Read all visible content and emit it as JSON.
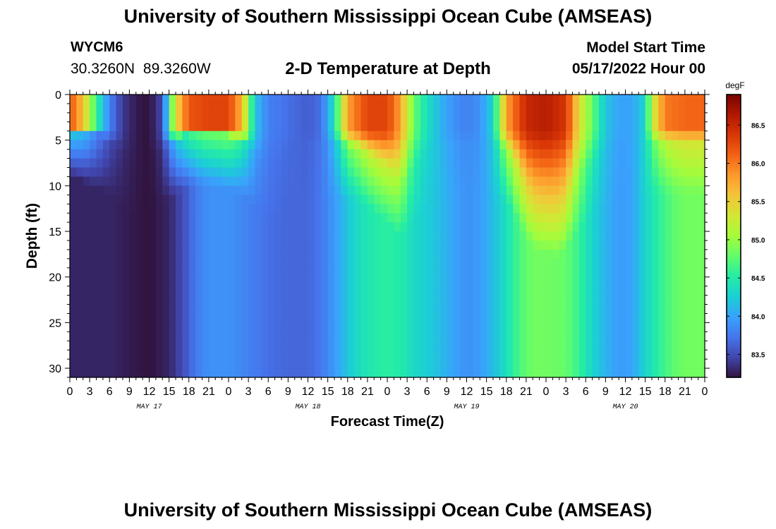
{
  "page": {
    "title": "University of Southern Mississippi Ocean Cube (AMSEAS)",
    "station_id": "WYCM6",
    "station_coords": "30.3260N 89.3260W",
    "subtitle": "2-D Temperature at Depth",
    "model_start_label": "Model Start Time",
    "model_start_value": "05/17/2022 Hour 00",
    "footer_title": "University of Southern Mississippi Ocean Cube (AMSEAS)"
  },
  "chart_data": {
    "type": "heatmap",
    "title": "2-D Temperature at Depth",
    "xlabel": "Forecast Time(Z)",
    "ylabel": "Depth (ft)",
    "x_unit": "hours since 05/17/2022 00Z",
    "x_range": [
      0,
      96
    ],
    "x_tick_step_hours": 3,
    "x_tick_labels": [
      "0",
      "3",
      "6",
      "9",
      "12",
      "15",
      "18",
      "21",
      "0",
      "3",
      "6",
      "9",
      "12",
      "15",
      "18",
      "21",
      "0",
      "3",
      "6",
      "9",
      "12",
      "15",
      "18",
      "21",
      "0",
      "3",
      "6",
      "9",
      "12",
      "15",
      "18",
      "21",
      "0"
    ],
    "day_labels": [
      {
        "label": "MAY 17",
        "hour": 12
      },
      {
        "label": "MAY 18",
        "hour": 36
      },
      {
        "label": "MAY 19",
        "hour": 60
      },
      {
        "label": "MAY 20",
        "hour": 84
      }
    ],
    "y_range": [
      0,
      31
    ],
    "y_ticks": [
      0,
      5,
      10,
      15,
      20,
      25,
      30
    ],
    "colorbar": {
      "unit": "degF",
      "range": [
        83.2,
        86.9
      ],
      "ticks": [
        83.5,
        84.0,
        84.5,
        85.0,
        85.5,
        86.0,
        86.5
      ],
      "colormap": [
        "#30123b",
        "#4145ab",
        "#4675ed",
        "#39a2fc",
        "#1bcfd4",
        "#24eca6",
        "#61fc6c",
        "#a4fc3b",
        "#d1e834",
        "#f3c63a",
        "#fe9b2d",
        "#f36315",
        "#d93806",
        "#b11901",
        "#7a0402"
      ]
    },
    "surface_layer_depth_ft": [
      0,
      4
    ],
    "surface_series_degF": [
      {
        "hour": 0,
        "value": 86.2
      },
      {
        "hour": 2,
        "value": 85.6
      },
      {
        "hour": 4,
        "value": 84.6
      },
      {
        "hour": 6,
        "value": 83.8
      },
      {
        "hour": 8,
        "value": 83.4
      },
      {
        "hour": 10,
        "value": 83.25
      },
      {
        "hour": 12,
        "value": 83.2
      },
      {
        "hour": 14,
        "value": 83.5
      },
      {
        "hour": 15,
        "value": 84.5
      },
      {
        "hour": 16,
        "value": 85.4
      },
      {
        "hour": 18,
        "value": 86.2
      },
      {
        "hour": 21,
        "value": 86.3
      },
      {
        "hour": 24,
        "value": 86.3
      },
      {
        "hour": 26,
        "value": 85.7
      },
      {
        "hour": 28,
        "value": 84.2
      },
      {
        "hour": 30,
        "value": 83.8
      },
      {
        "hour": 33,
        "value": 83.7
      },
      {
        "hour": 36,
        "value": 83.6
      },
      {
        "hour": 38,
        "value": 83.7
      },
      {
        "hour": 40,
        "value": 84.4
      },
      {
        "hour": 42,
        "value": 85.8
      },
      {
        "hour": 45,
        "value": 86.3
      },
      {
        "hour": 48,
        "value": 86.3
      },
      {
        "hour": 50,
        "value": 85.8
      },
      {
        "hour": 52,
        "value": 84.8
      },
      {
        "hour": 54,
        "value": 84.4
      },
      {
        "hour": 56,
        "value": 84.1
      },
      {
        "hour": 58,
        "value": 83.9
      },
      {
        "hour": 60,
        "value": 83.8
      },
      {
        "hour": 62,
        "value": 83.9
      },
      {
        "hour": 64,
        "value": 84.3
      },
      {
        "hour": 66,
        "value": 85.8
      },
      {
        "hour": 69,
        "value": 86.5
      },
      {
        "hour": 72,
        "value": 86.6
      },
      {
        "hour": 75,
        "value": 86.4
      },
      {
        "hour": 77,
        "value": 85.4
      },
      {
        "hour": 79,
        "value": 84.8
      },
      {
        "hour": 81,
        "value": 84.2
      },
      {
        "hour": 83,
        "value": 84.0
      },
      {
        "hour": 85,
        "value": 84.0
      },
      {
        "hour": 87,
        "value": 84.3
      },
      {
        "hour": 88,
        "value": 85.2
      },
      {
        "hour": 90,
        "value": 86.0
      },
      {
        "hour": 93,
        "value": 86.1
      },
      {
        "hour": 96,
        "value": 86.1
      }
    ],
    "deep_series_degF": [
      {
        "hour": 0,
        "value": 83.3
      },
      {
        "hour": 6,
        "value": 83.3
      },
      {
        "hour": 9,
        "value": 83.25
      },
      {
        "hour": 12,
        "value": 83.2
      },
      {
        "hour": 15,
        "value": 83.3
      },
      {
        "hour": 17,
        "value": 83.5
      },
      {
        "hour": 19,
        "value": 83.75
      },
      {
        "hour": 21,
        "value": 83.9
      },
      {
        "hour": 24,
        "value": 83.9
      },
      {
        "hour": 27,
        "value": 83.8
      },
      {
        "hour": 30,
        "value": 83.7
      },
      {
        "hour": 33,
        "value": 83.65
      },
      {
        "hour": 36,
        "value": 83.65
      },
      {
        "hour": 38,
        "value": 83.75
      },
      {
        "hour": 40,
        "value": 83.95
      },
      {
        "hour": 42,
        "value": 84.2
      },
      {
        "hour": 44,
        "value": 84.4
      },
      {
        "hour": 46,
        "value": 84.5
      },
      {
        "hour": 48,
        "value": 84.55
      },
      {
        "hour": 50,
        "value": 84.5
      },
      {
        "hour": 52,
        "value": 84.35
      },
      {
        "hour": 54,
        "value": 84.25
      },
      {
        "hour": 56,
        "value": 84.15
      },
      {
        "hour": 58,
        "value": 84.0
      },
      {
        "hour": 60,
        "value": 83.9
      },
      {
        "hour": 62,
        "value": 83.95
      },
      {
        "hour": 64,
        "value": 84.15
      },
      {
        "hour": 66,
        "value": 84.4
      },
      {
        "hour": 68,
        "value": 84.7
      },
      {
        "hour": 70,
        "value": 84.85
      },
      {
        "hour": 72,
        "value": 84.85
      },
      {
        "hour": 75,
        "value": 84.8
      },
      {
        "hour": 77,
        "value": 84.6
      },
      {
        "hour": 79,
        "value": 84.3
      },
      {
        "hour": 81,
        "value": 84.1
      },
      {
        "hour": 83,
        "value": 83.95
      },
      {
        "hour": 85,
        "value": 84.0
      },
      {
        "hour": 87,
        "value": 84.3
      },
      {
        "hour": 89,
        "value": 84.55
      },
      {
        "hour": 91,
        "value": 84.75
      },
      {
        "hour": 93,
        "value": 84.85
      },
      {
        "hour": 96,
        "value": 84.85
      }
    ],
    "mixed_layer_depth_ft": [
      {
        "hour": 0,
        "value": 3
      },
      {
        "hour": 6,
        "value": 5
      },
      {
        "hour": 10,
        "value": 8
      },
      {
        "hour": 14,
        "value": 6
      },
      {
        "hour": 18,
        "value": 4
      },
      {
        "hour": 22,
        "value": 4
      },
      {
        "hour": 26,
        "value": 5
      },
      {
        "hour": 30,
        "value": 8
      },
      {
        "hour": 34,
        "value": 6
      },
      {
        "hour": 38,
        "value": 5
      },
      {
        "hour": 44,
        "value": 6
      },
      {
        "hour": 48,
        "value": 8
      },
      {
        "hour": 50,
        "value": 10
      },
      {
        "hour": 54,
        "value": 6
      },
      {
        "hour": 60,
        "value": 5
      },
      {
        "hour": 66,
        "value": 6
      },
      {
        "hour": 70,
        "value": 11
      },
      {
        "hour": 74,
        "value": 12
      },
      {
        "hour": 78,
        "value": 8
      },
      {
        "hour": 84,
        "value": 5
      },
      {
        "hour": 90,
        "value": 5
      },
      {
        "hour": 96,
        "value": 5
      }
    ]
  }
}
